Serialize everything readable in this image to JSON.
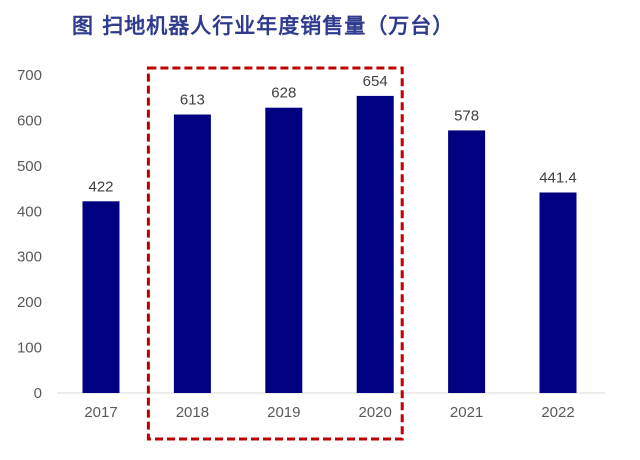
{
  "title": "图 扫地机器人行业年度销售量（万台）",
  "chart_data": {
    "type": "bar",
    "title": "图 扫地机器人行业年度销售量（万台）",
    "categories": [
      "2017",
      "2018",
      "2019",
      "2020",
      "2021",
      "2022"
    ],
    "values": [
      422,
      613,
      628,
      654,
      578,
      441.4
    ],
    "data_labels": [
      "422",
      "613",
      "628",
      "654",
      "578",
      "441.4"
    ],
    "xlabel": "",
    "ylabel": "",
    "ylim": [
      0,
      700
    ],
    "yticks": [
      "0",
      "100",
      "200",
      "300",
      "400",
      "500",
      "600",
      "700"
    ],
    "grid": false,
    "legend": "none",
    "bar_color": "#000080",
    "highlight": {
      "categories": [
        "2018",
        "2019",
        "2020"
      ],
      "style": "dashed box",
      "color": "#c00000"
    }
  }
}
